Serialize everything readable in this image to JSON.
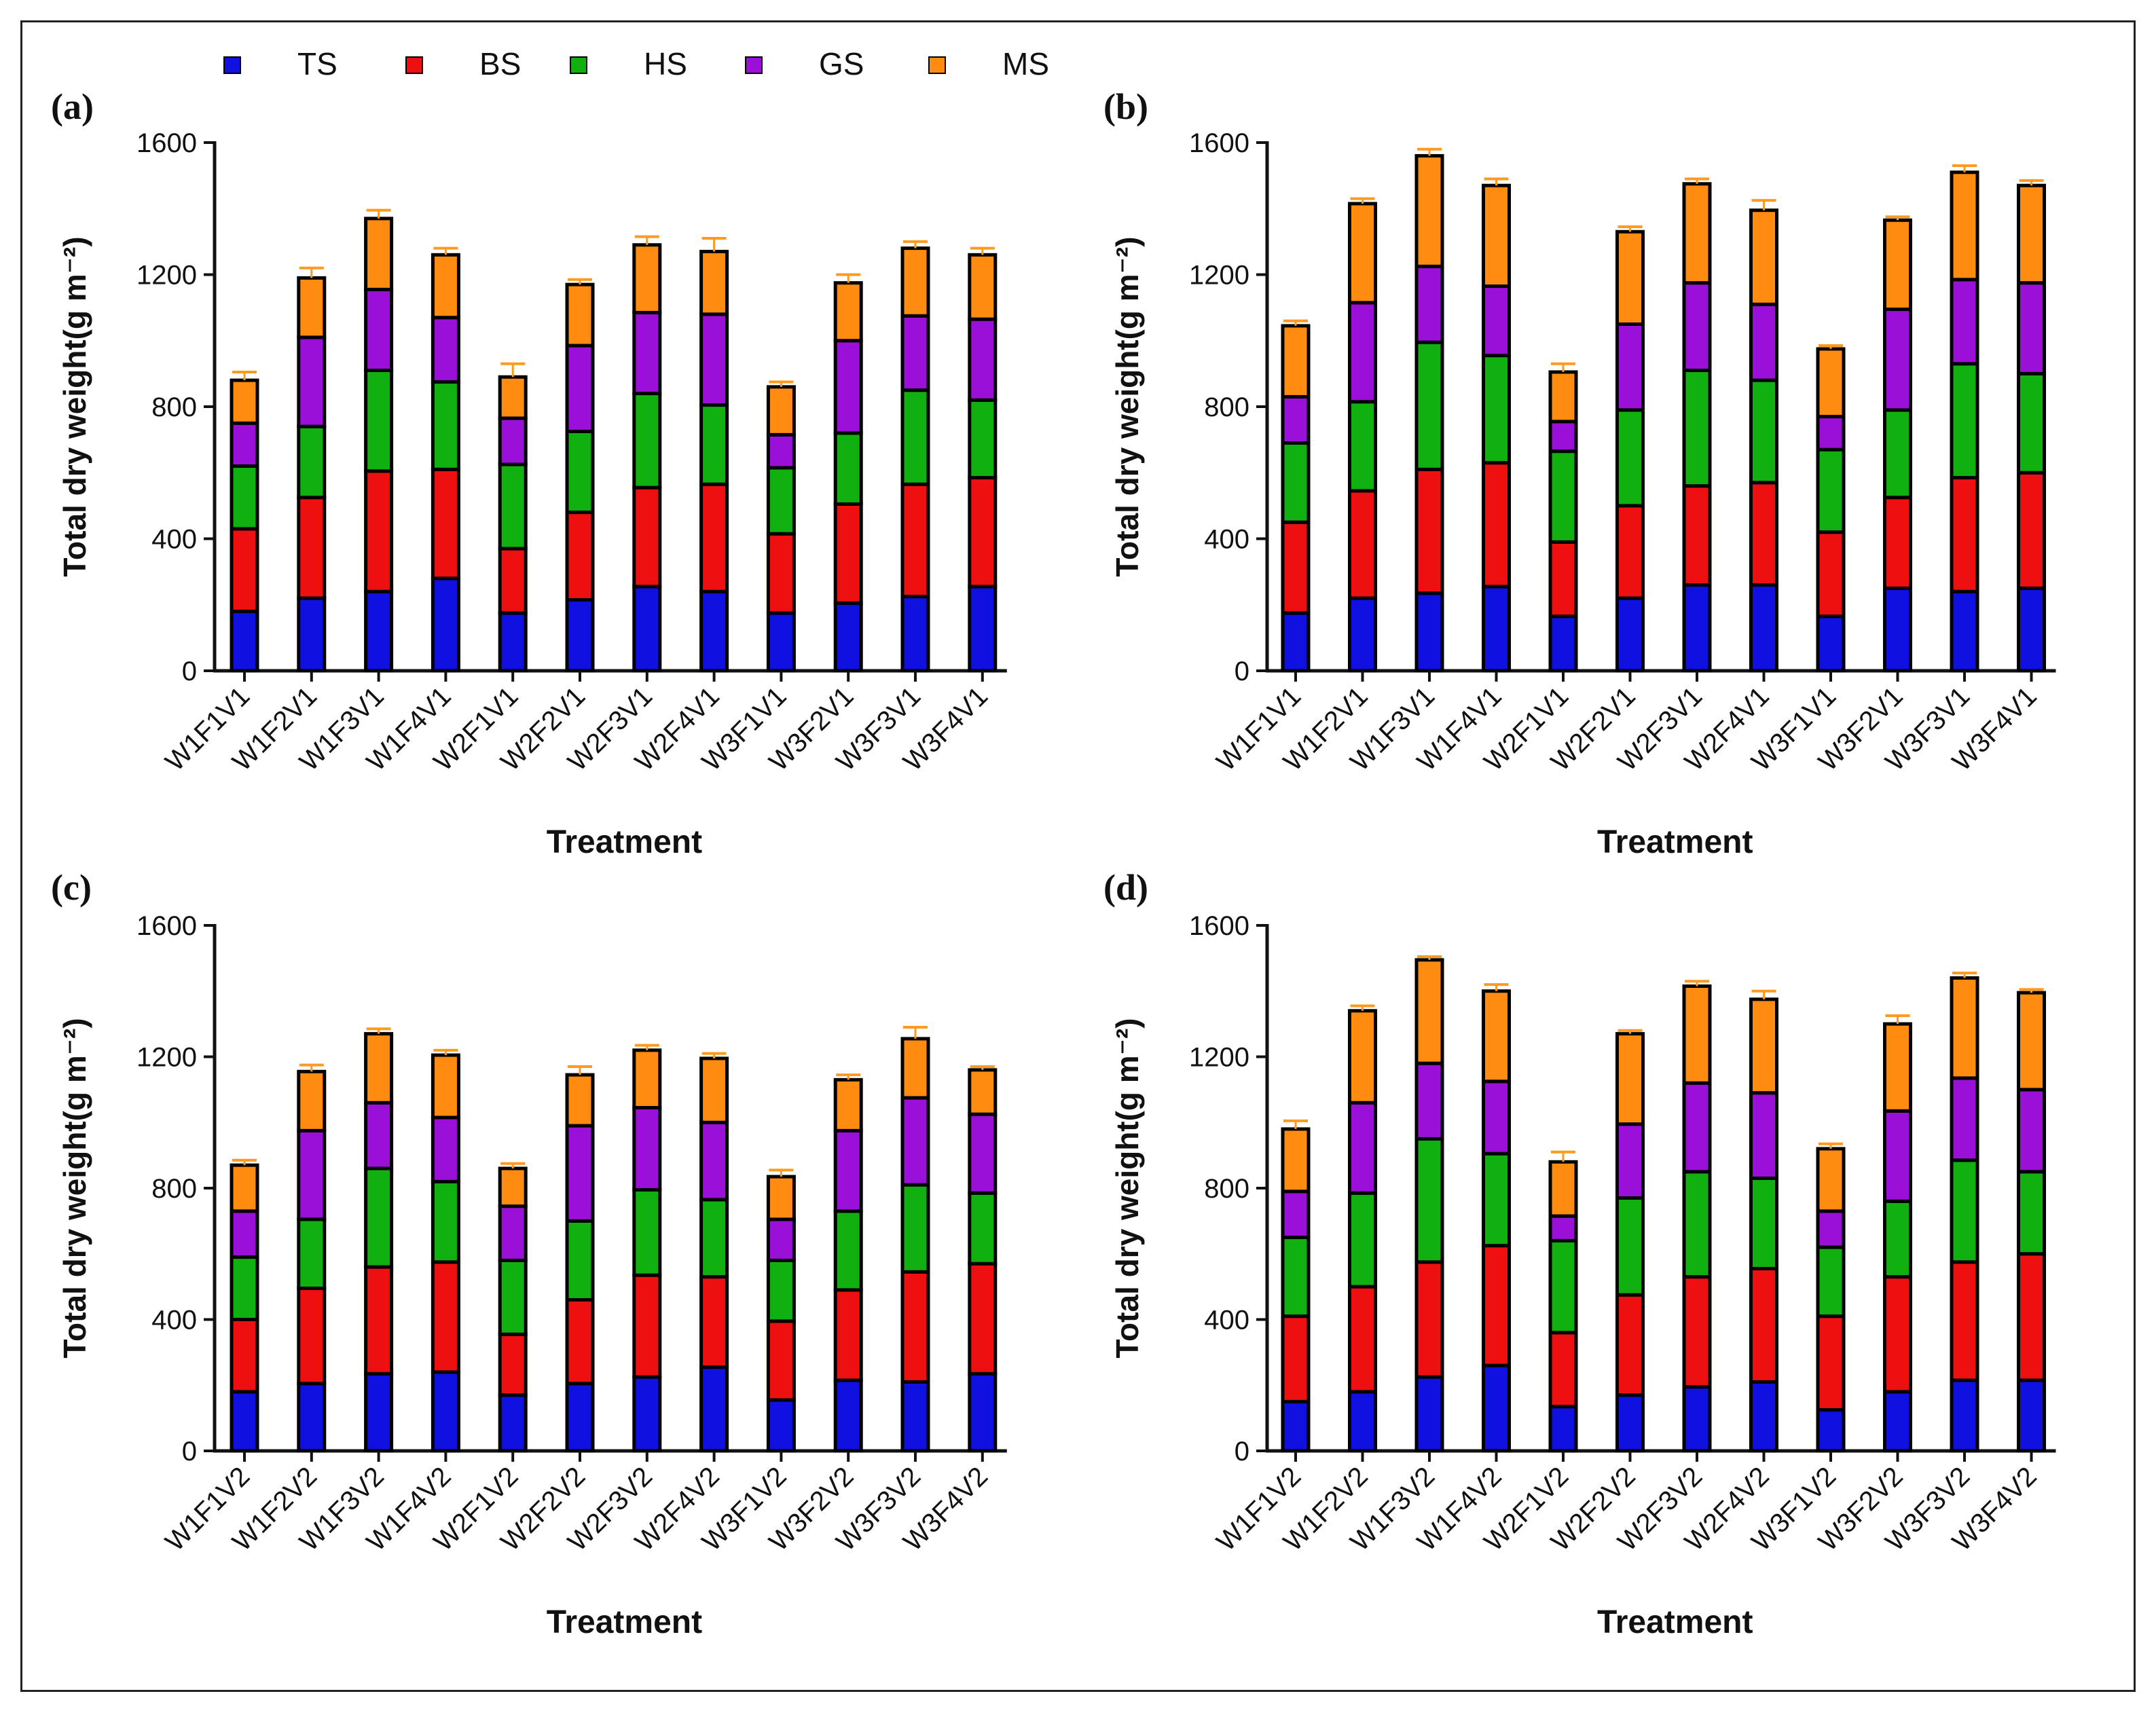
{
  "legend": [
    {
      "key": "TS",
      "label": "TS",
      "color": "#1010e0"
    },
    {
      "key": "BS",
      "label": "BS",
      "color": "#ee1010"
    },
    {
      "key": "HS",
      "label": "HS",
      "color": "#10b010"
    },
    {
      "key": "GS",
      "label": "GS",
      "color": "#9a10d8"
    },
    {
      "key": "MS",
      "label": "MS",
      "color": "#ff8c10"
    }
  ],
  "chart_data": [
    {
      "panel": "(a)",
      "type": "bar",
      "stacked": true,
      "xlabel": "Treatment",
      "ylabel": "Total dry weight(g m⁻²)",
      "ylim": [
        0,
        1600
      ],
      "yticks": [
        0,
        400,
        800,
        1200,
        1600
      ],
      "categories": [
        "W1F1V1",
        "W1F2V1",
        "W1F3V1",
        "W1F4V1",
        "W2F1V1",
        "W2F2V1",
        "W2F3V1",
        "W2F4V1",
        "W3F1V1",
        "W3F2V1",
        "W3F3V1",
        "W3F4V1"
      ],
      "series": [
        {
          "name": "TS",
          "values": [
            180,
            220,
            240,
            280,
            175,
            215,
            255,
            240,
            175,
            205,
            225,
            255
          ]
        },
        {
          "name": "BS",
          "values": [
            250,
            305,
            365,
            330,
            195,
            265,
            300,
            325,
            240,
            300,
            340,
            330
          ]
        },
        {
          "name": "HS",
          "values": [
            190,
            215,
            305,
            265,
            255,
            245,
            285,
            240,
            200,
            215,
            285,
            235
          ]
        },
        {
          "name": "GS",
          "values": [
            130,
            270,
            245,
            195,
            140,
            260,
            245,
            275,
            100,
            280,
            225,
            245
          ]
        },
        {
          "name": "MS",
          "values": [
            130,
            180,
            215,
            190,
            125,
            185,
            205,
            190,
            145,
            175,
            205,
            195
          ]
        }
      ],
      "errors": [
        [
          15,
          15,
          15,
          15,
          15,
          15,
          15,
          15,
          15,
          15,
          15,
          15
        ],
        [
          15,
          15,
          15,
          15,
          15,
          15,
          15,
          15,
          15,
          15,
          15,
          15
        ],
        [
          15,
          15,
          15,
          15,
          15,
          15,
          15,
          15,
          15,
          15,
          15,
          15
        ],
        [
          15,
          15,
          15,
          15,
          15,
          15,
          15,
          15,
          15,
          15,
          15,
          15
        ],
        [
          25,
          30,
          25,
          20,
          40,
          15,
          25,
          40,
          15,
          25,
          20,
          20
        ]
      ]
    },
    {
      "panel": "(b)",
      "type": "bar",
      "stacked": true,
      "xlabel": "Treatment",
      "ylabel": "Total dry weight(g m⁻²)",
      "ylim": [
        0,
        1600
      ],
      "yticks": [
        0,
        400,
        800,
        1200,
        1600
      ],
      "categories": [
        "W1F1V1",
        "W1F2V1",
        "W1F3V1",
        "W1F4V1",
        "W2F1V1",
        "W2F2V1",
        "W2F3V1",
        "W2F4V1",
        "W3F1V1",
        "W3F2V1",
        "W3F3V1",
        "W3F4V1"
      ],
      "series": [
        {
          "name": "TS",
          "values": [
            175,
            220,
            235,
            255,
            165,
            220,
            260,
            260,
            165,
            250,
            240,
            250
          ]
        },
        {
          "name": "BS",
          "values": [
            275,
            325,
            375,
            375,
            225,
            280,
            300,
            310,
            255,
            275,
            345,
            350
          ]
        },
        {
          "name": "HS",
          "values": [
            240,
            270,
            385,
            325,
            275,
            290,
            350,
            310,
            250,
            265,
            345,
            300
          ]
        },
        {
          "name": "GS",
          "values": [
            140,
            300,
            230,
            210,
            90,
            260,
            265,
            230,
            100,
            305,
            255,
            275
          ]
        },
        {
          "name": "MS",
          "values": [
            215,
            300,
            335,
            305,
            150,
            280,
            300,
            285,
            205,
            270,
            325,
            295
          ]
        }
      ],
      "errors": [
        [
          15,
          15,
          15,
          15,
          15,
          15,
          15,
          15,
          15,
          15,
          15,
          15
        ],
        [
          15,
          15,
          15,
          15,
          15,
          15,
          15,
          15,
          15,
          15,
          15,
          15
        ],
        [
          15,
          15,
          15,
          15,
          15,
          15,
          15,
          15,
          15,
          15,
          15,
          15
        ],
        [
          15,
          15,
          15,
          15,
          15,
          15,
          15,
          15,
          15,
          15,
          15,
          15
        ],
        [
          15,
          15,
          20,
          20,
          25,
          15,
          15,
          30,
          10,
          10,
          20,
          15
        ]
      ]
    },
    {
      "panel": "(c)",
      "type": "bar",
      "stacked": true,
      "xlabel": "Treatment",
      "ylabel": "Total dry weight(g m⁻²)",
      "ylim": [
        0,
        1600
      ],
      "yticks": [
        0,
        400,
        800,
        1200,
        1600
      ],
      "categories": [
        "W1F1V2",
        "W1F2V2",
        "W1F3V2",
        "W1F4V2",
        "W2F1V2",
        "W2F2V2",
        "W2F3V2",
        "W2F4V2",
        "W3F1V2",
        "W3F2V2",
        "W3F3V2",
        "W3F4V2"
      ],
      "series": [
        {
          "name": "TS",
          "values": [
            180,
            205,
            235,
            240,
            170,
            205,
            225,
            255,
            155,
            215,
            210,
            235
          ]
        },
        {
          "name": "BS",
          "values": [
            220,
            290,
            325,
            335,
            185,
            255,
            310,
            275,
            240,
            275,
            335,
            335
          ]
        },
        {
          "name": "HS",
          "values": [
            190,
            210,
            300,
            245,
            225,
            240,
            260,
            235,
            185,
            240,
            265,
            215
          ]
        },
        {
          "name": "GS",
          "values": [
            140,
            270,
            200,
            195,
            165,
            290,
            250,
            235,
            125,
            245,
            265,
            240
          ]
        },
        {
          "name": "MS",
          "values": [
            140,
            180,
            210,
            190,
            115,
            155,
            175,
            195,
            130,
            155,
            180,
            135
          ]
        }
      ],
      "errors": [
        [
          15,
          15,
          15,
          15,
          15,
          15,
          15,
          15,
          15,
          15,
          15,
          15
        ],
        [
          15,
          15,
          15,
          15,
          15,
          15,
          15,
          15,
          15,
          15,
          15,
          15
        ],
        [
          15,
          15,
          15,
          15,
          15,
          15,
          15,
          15,
          15,
          15,
          15,
          15
        ],
        [
          15,
          15,
          15,
          15,
          15,
          15,
          15,
          15,
          15,
          15,
          15,
          15
        ],
        [
          15,
          20,
          15,
          15,
          15,
          25,
          15,
          15,
          20,
          15,
          35,
          10
        ]
      ]
    },
    {
      "panel": "(d)",
      "type": "bar",
      "stacked": true,
      "xlabel": "Treatment",
      "ylabel": "Total dry weight(g m⁻²)",
      "ylim": [
        0,
        1600
      ],
      "yticks": [
        0,
        400,
        800,
        1200,
        1600
      ],
      "categories": [
        "W1F1V2",
        "W1F2V2",
        "W1F3V2",
        "W1F4V2",
        "W2F1V2",
        "W2F2V2",
        "W2F3V2",
        "W2F4V2",
        "W3F1V2",
        "W3F2V2",
        "W3F3V2",
        "W3F4V2"
      ],
      "series": [
        {
          "name": "TS",
          "values": [
            150,
            180,
            225,
            260,
            135,
            170,
            195,
            210,
            125,
            180,
            215,
            215
          ]
        },
        {
          "name": "BS",
          "values": [
            260,
            320,
            350,
            365,
            225,
            305,
            335,
            345,
            285,
            350,
            360,
            385
          ]
        },
        {
          "name": "HS",
          "values": [
            240,
            285,
            375,
            280,
            280,
            295,
            320,
            275,
            210,
            230,
            310,
            250
          ]
        },
        {
          "name": "GS",
          "values": [
            140,
            275,
            230,
            220,
            75,
            225,
            270,
            260,
            110,
            275,
            250,
            250
          ]
        },
        {
          "name": "MS",
          "values": [
            190,
            280,
            315,
            275,
            165,
            275,
            295,
            285,
            190,
            265,
            305,
            295
          ]
        }
      ],
      "errors": [
        [
          15,
          15,
          15,
          15,
          15,
          15,
          15,
          15,
          15,
          15,
          15,
          15
        ],
        [
          15,
          15,
          15,
          15,
          15,
          15,
          15,
          15,
          15,
          15,
          15,
          15
        ],
        [
          15,
          15,
          15,
          15,
          15,
          15,
          15,
          15,
          15,
          15,
          15,
          15
        ],
        [
          15,
          15,
          15,
          15,
          15,
          15,
          15,
          15,
          15,
          15,
          15,
          15
        ],
        [
          25,
          15,
          10,
          20,
          30,
          10,
          15,
          25,
          15,
          25,
          15,
          10
        ]
      ]
    }
  ]
}
